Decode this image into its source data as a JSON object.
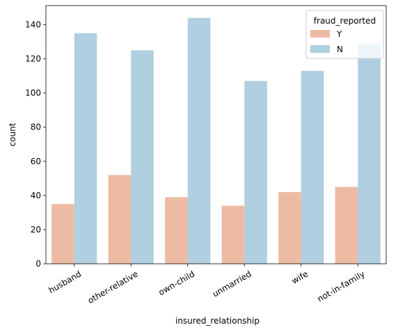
{
  "chart_data": {
    "type": "bar",
    "categories": [
      "husband",
      "other-relative",
      "own-child",
      "unmarried",
      "wife",
      "not-in-family"
    ],
    "series": [
      {
        "name": "Y",
        "values": [
          35,
          52,
          39,
          34,
          42,
          45
        ]
      },
      {
        "name": "N",
        "values": [
          135,
          125,
          144,
          107,
          113,
          129
        ]
      }
    ],
    "xlabel": "insured_relationship",
    "ylabel": "count",
    "ylim": [
      0,
      151.2
    ],
    "yticks": [
      0,
      20,
      40,
      60,
      80,
      100,
      120,
      140
    ],
    "legend": {
      "title": "fraud_reported",
      "placement": "top-right"
    },
    "colors": {
      "Y": "#EDBBA4",
      "N": "#B0CFE0"
    },
    "grid": false
  }
}
